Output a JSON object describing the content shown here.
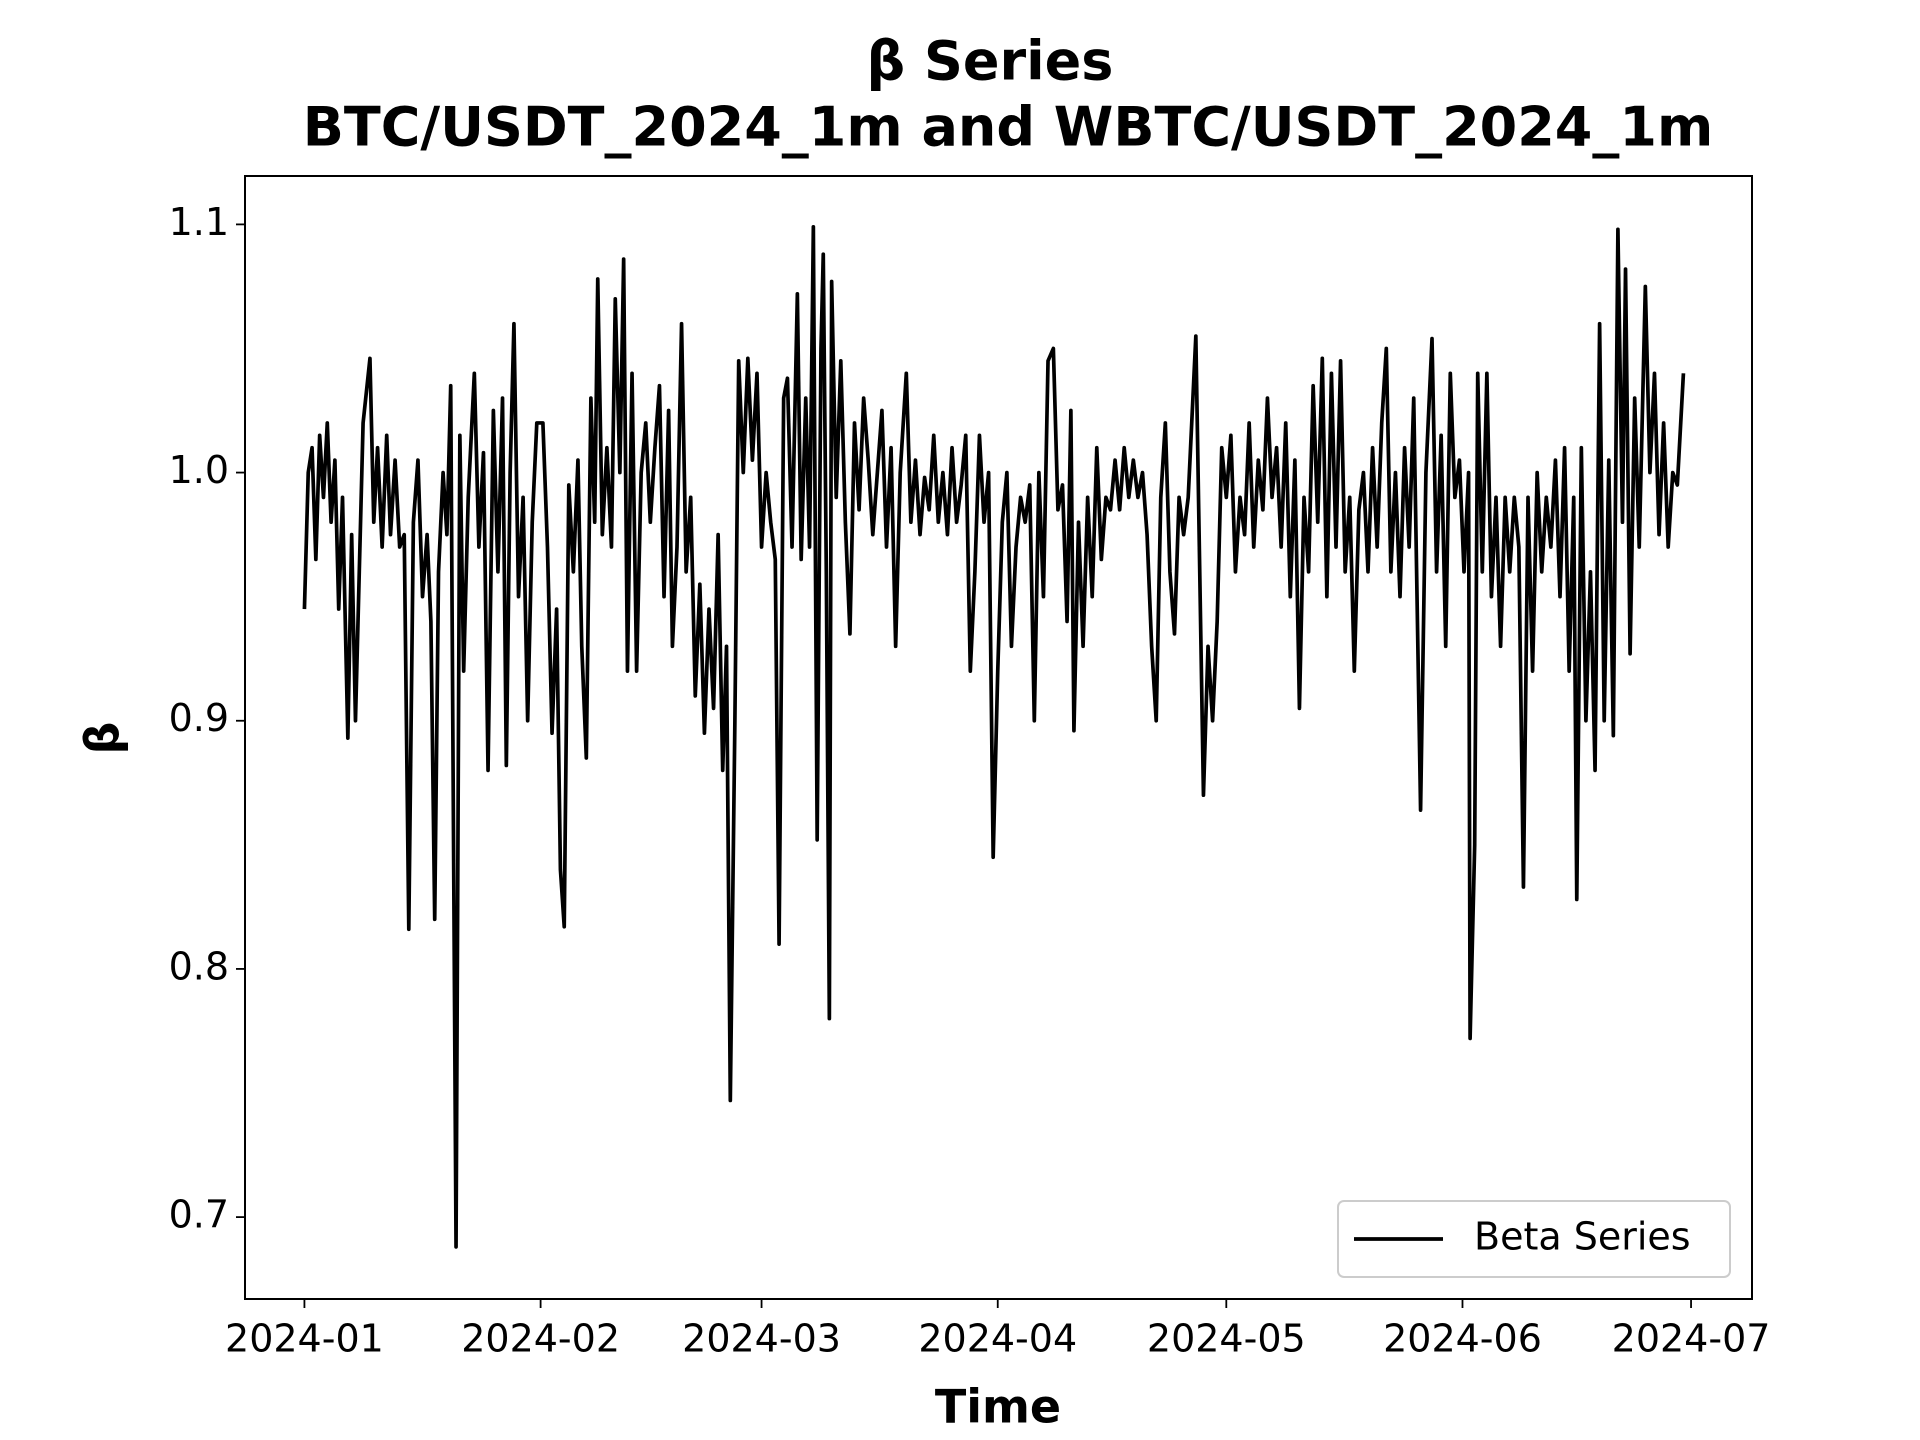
{
  "chart_data": {
    "type": "line",
    "title": "β Series",
    "subtitle": "BTC/USDT_2024_1m and WBTC/USDT_2024_1m",
    "x_label": "Time",
    "y_label": "β",
    "xlim": [
      -7.8,
      190.0
    ],
    "ylim": [
      0.667,
      1.1195
    ],
    "xticks": [
      {
        "value": 0,
        "label": "2024-01"
      },
      {
        "value": 31,
        "label": "2024-02"
      },
      {
        "value": 60,
        "label": "2024-03"
      },
      {
        "value": 91,
        "label": "2024-04"
      },
      {
        "value": 121,
        "label": "2024-05"
      },
      {
        "value": 152,
        "label": "2024-06"
      },
      {
        "value": 182,
        "label": "2024-07"
      }
    ],
    "yticks": [
      0.7,
      0.8,
      0.9,
      {
        "value": 1,
        "label": "1.0"
      },
      1.1
    ],
    "grid": false,
    "legend": "lower right",
    "x": [
      0,
      0.5,
      1,
      1.5,
      2,
      2.5,
      3,
      3.5,
      4,
      4.5,
      5,
      5.7,
      6.2,
      6.7,
      7.2,
      7.7,
      8.6,
      9.1,
      9.6,
      10.2,
      10.8,
      11.3,
      11.9,
      12.5,
      13.1,
      13.7,
      14.3,
      14.9,
      15.5,
      16.1,
      16.6,
      17.1,
      17.6,
      18.2,
      18.7,
      19.2,
      19.9,
      20.4,
      20.9,
      21.5,
      22.3,
      22.9,
      23.5,
      24.1,
      24.8,
      25.4,
      26.0,
      26.5,
      27.0,
      27.5,
      28.1,
      28.7,
      29.3,
      29.9,
      30.5,
      31.3,
      31.9,
      32.5,
      33.1,
      33.6,
      34.1,
      34.7,
      35.3,
      35.9,
      36.4,
      37.0,
      37.6,
      38.1,
      38.5,
      39.1,
      39.7,
      40.3,
      40.8,
      41.4,
      41.9,
      42.4,
      43.0,
      43.6,
      44.2,
      44.8,
      45.4,
      46.0,
      46.6,
      47.2,
      47.8,
      48.3,
      48.9,
      49.5,
      50.1,
      50.7,
      51.3,
      51.9,
      52.5,
      53.1,
      53.7,
      54.3,
      54.9,
      55.4,
      55.9,
      56.5,
      57.0,
      57.6,
      58.2,
      58.8,
      59.4,
      60.0,
      60.6,
      61.2,
      61.8,
      62.3,
      62.9,
      63.4,
      64.0,
      64.7,
      65.2,
      65.8,
      66.3,
      66.8,
      67.3,
      67.8,
      68.1,
      68.5,
      68.9,
      69.2,
      69.8,
      70.4,
      71.0,
      71.6,
      72.2,
      72.8,
      73.4,
      74.0,
      74.6,
      75.2,
      75.8,
      76.4,
      77.0,
      77.6,
      78.2,
      79.0,
      79.6,
      80.2,
      80.8,
      81.4,
      82.0,
      82.6,
      83.2,
      83.8,
      84.4,
      85.0,
      85.6,
      86.2,
      86.8,
      87.4,
      88.0,
      88.6,
      89.2,
      89.8,
      90.4,
      91.0,
      91.6,
      92.2,
      92.8,
      93.4,
      94.0,
      94.6,
      95.2,
      95.8,
      96.4,
      97.0,
      97.6,
      98.3,
      98.9,
      99.5,
      100.1,
      100.6,
      101.0,
      101.6,
      102.2,
      102.8,
      103.4,
      104.0,
      104.6,
      105.2,
      105.8,
      106.4,
      107.0,
      107.6,
      108.2,
      108.8,
      109.4,
      110.0,
      110.6,
      111.2,
      111.8,
      112.4,
      113.0,
      113.6,
      114.2,
      114.8,
      115.4,
      116.0,
      117.0,
      118.0,
      118.6,
      119.2,
      119.8,
      120.4,
      121.0,
      121.6,
      122.2,
      122.8,
      123.4,
      124.0,
      124.6,
      125.2,
      125.8,
      126.4,
      127.0,
      127.6,
      128.2,
      128.8,
      129.4,
      130.0,
      130.6,
      131.2,
      131.8,
      132.4,
      133.0,
      133.6,
      134.2,
      134.8,
      135.4,
      136.0,
      136.6,
      137.2,
      137.8,
      138.4,
      139.0,
      139.6,
      140.2,
      140.8,
      141.4,
      142.0,
      142.6,
      143.2,
      143.8,
      144.4,
      145.0,
      145.6,
      146.5,
      147.2,
      148.0,
      148.6,
      149.2,
      149.8,
      150.4,
      151.0,
      151.6,
      152.2,
      152.8,
      153.0,
      153.6,
      154.0,
      154.6,
      155.2,
      155.8,
      156.4,
      157.0,
      157.6,
      158.2,
      158.8,
      159.4,
      160.0,
      160.6,
      161.2,
      161.8,
      162.4,
      163.0,
      163.6,
      164.2,
      164.8,
      165.4,
      166.0,
      166.6,
      167.0,
      167.6,
      168.2,
      168.8,
      169.4,
      170.0,
      170.6,
      171.2,
      171.8,
      172.4,
      173.0,
      173.4,
      174.0,
      174.6,
      175.2,
      176.0,
      176.6,
      177.2,
      177.8,
      178.4,
      179.0,
      179.6,
      180.2,
      181.0
    ],
    "series": [
      {
        "name": "Beta Series",
        "color": "#000000",
        "values": [
          0.945,
          1.0,
          1.01,
          0.965,
          1.015,
          0.99,
          1.02,
          0.98,
          1.005,
          0.945,
          0.99,
          0.893,
          0.975,
          0.9,
          0.96,
          1.02,
          1.046,
          0.98,
          1.01,
          0.97,
          1.015,
          0.975,
          1.005,
          0.97,
          0.975,
          0.816,
          0.98,
          1.005,
          0.95,
          0.975,
          0.94,
          0.82,
          0.96,
          1.0,
          0.975,
          1.035,
          0.688,
          1.015,
          0.92,
          0.99,
          1.04,
          0.97,
          1.008,
          0.88,
          1.025,
          0.96,
          1.03,
          0.882,
          1.0,
          1.06,
          0.95,
          0.99,
          0.9,
          0.98,
          1.02,
          1.02,
          0.97,
          0.895,
          0.945,
          0.84,
          0.817,
          0.995,
          0.96,
          1.005,
          0.93,
          0.885,
          1.03,
          0.98,
          1.078,
          0.975,
          1.01,
          0.97,
          1.07,
          1.0,
          1.086,
          0.92,
          1.04,
          0.92,
          1.0,
          1.02,
          0.98,
          1.01,
          1.035,
          0.95,
          1.025,
          0.93,
          0.97,
          1.06,
          0.96,
          0.99,
          0.91,
          0.955,
          0.895,
          0.945,
          0.905,
          0.975,
          0.88,
          0.93,
          0.747,
          0.9,
          1.045,
          1.0,
          1.046,
          1.005,
          1.04,
          0.97,
          1.0,
          0.98,
          0.965,
          0.81,
          1.03,
          1.038,
          0.97,
          1.072,
          0.965,
          1.03,
          0.97,
          1.099,
          0.852,
          1.05,
          1.088,
          0.96,
          0.78,
          1.077,
          0.99,
          1.045,
          0.98,
          0.935,
          1.02,
          0.985,
          1.03,
          1.005,
          0.975,
          1.0,
          1.025,
          0.97,
          1.01,
          0.93,
          1.0,
          1.04,
          0.98,
          1.005,
          0.975,
          0.998,
          0.985,
          1.015,
          0.98,
          1.0,
          0.975,
          1.01,
          0.98,
          0.995,
          1.015,
          0.92,
          0.96,
          1.015,
          0.98,
          1.0,
          0.845,
          0.92,
          0.98,
          1.0,
          0.93,
          0.97,
          0.99,
          0.98,
          0.995,
          0.9,
          1.0,
          0.95,
          1.045,
          1.05,
          0.985,
          0.995,
          0.94,
          1.025,
          0.896,
          0.98,
          0.93,
          0.99,
          0.95,
          1.01,
          0.965,
          0.99,
          0.985,
          1.005,
          0.985,
          1.01,
          0.99,
          1.005,
          0.99,
          1.0,
          0.975,
          0.93,
          0.9,
          0.99,
          1.02,
          0.96,
          0.935,
          0.99,
          0.975,
          0.99,
          1.055,
          0.87,
          0.93,
          0.9,
          0.94,
          1.01,
          0.99,
          1.015,
          0.96,
          0.99,
          0.975,
          1.02,
          0.97,
          1.005,
          0.985,
          1.03,
          0.99,
          1.01,
          0.97,
          1.02,
          0.95,
          1.005,
          0.905,
          0.99,
          0.96,
          1.035,
          0.98,
          1.046,
          0.95,
          1.04,
          0.97,
          1.045,
          0.96,
          0.99,
          0.92,
          0.985,
          1.0,
          0.96,
          1.01,
          0.97,
          1.02,
          1.05,
          0.96,
          1.0,
          0.95,
          1.01,
          0.97,
          1.03,
          0.864,
          1.0,
          1.054,
          0.96,
          1.015,
          0.93,
          1.04,
          0.99,
          1.005,
          0.96,
          1.0,
          0.772,
          0.85,
          1.04,
          0.96,
          1.04,
          0.95,
          0.99,
          0.93,
          0.99,
          0.96,
          0.99,
          0.97,
          0.833,
          0.99,
          0.92,
          1.0,
          0.96,
          0.99,
          0.97,
          1.005,
          0.95,
          1.01,
          0.92,
          0.99,
          0.828,
          1.01,
          0.9,
          0.96,
          0.88,
          1.06,
          0.9,
          1.005,
          0.894,
          1.098,
          0.98,
          1.082,
          0.927,
          1.03,
          0.97,
          1.075,
          1.0,
          1.04,
          0.975,
          1.02,
          0.97,
          1.0,
          0.995,
          1.04
        ]
      }
    ]
  }
}
